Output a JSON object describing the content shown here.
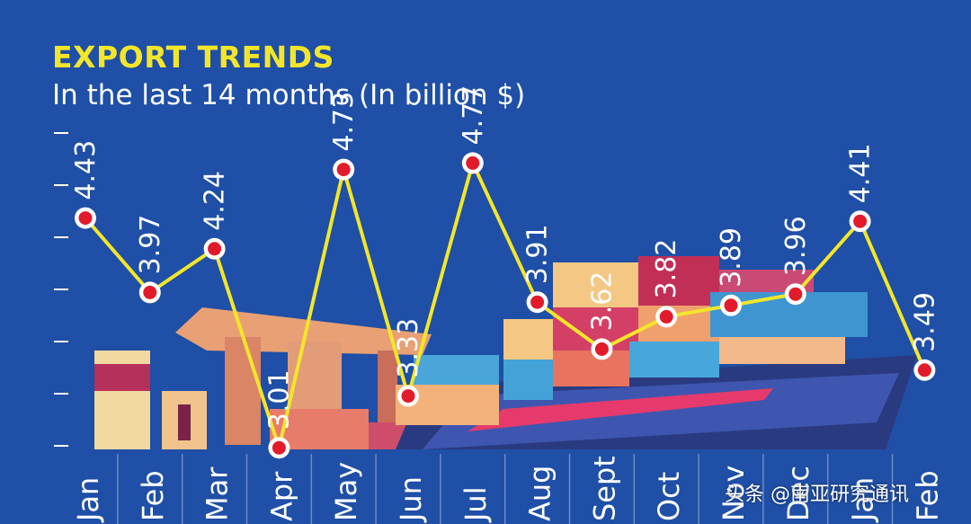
{
  "header": {
    "title": "EXPORT TRENDS",
    "subtitle": "In the last 14 months (In billion $)"
  },
  "watermark": "头条 @南亚研究通讯",
  "colors": {
    "background": "#1f4fa6",
    "title": "#f3e62a",
    "line": "#f3e62a",
    "marker_fill": "#e21b2b",
    "marker_ring": "#ffffff",
    "label": "#ffffff"
  },
  "chart_data": {
    "type": "line",
    "title": "EXPORT TRENDS",
    "subtitle": "In the last 14 months (In billion $)",
    "xlabel": "",
    "ylabel": "In billion $",
    "categories": [
      "Jan",
      "Feb",
      "Mar",
      "Apr",
      "May",
      "Jun",
      "Jul",
      "Aug",
      "Sept",
      "Oct",
      "Nov",
      "Dec",
      "Jan",
      "Feb"
    ],
    "series": [
      {
        "name": "Exports",
        "values": [
          4.43,
          3.97,
          4.24,
          3.01,
          4.73,
          3.33,
          4.77,
          3.91,
          3.62,
          3.82,
          3.89,
          3.96,
          4.41,
          3.49
        ]
      }
    ],
    "value_labels": [
      "4.43",
      "3.97",
      "4.24",
      "3.01",
      "4.73",
      "3.33",
      "4.77",
      "3.91",
      "3.62",
      "3.82",
      "3.89",
      "3.96",
      "4.41",
      "3.49"
    ],
    "ylim": [
      2.5,
      5.0
    ],
    "grid": false,
    "legend": "none"
  }
}
